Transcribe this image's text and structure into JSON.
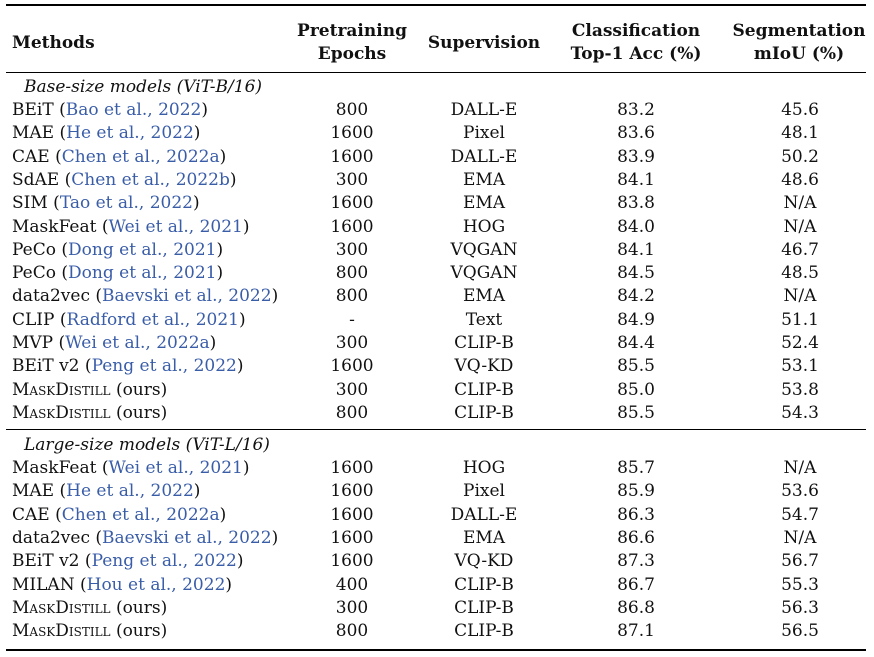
{
  "header": {
    "methods": "Methods",
    "epochs_line1": "Pretraining",
    "epochs_line2": "Epochs",
    "supervision": "Supervision",
    "acc_line1": "Classification",
    "acc_line2": "Top-1 Acc (%)",
    "miou_line1": "Segmentation",
    "miou_line2": "mIoU (%)"
  },
  "sections": [
    {
      "title": "Base-size models (ViT-B/16)",
      "rows": [
        {
          "method": "BEiT",
          "cite": "Bao et al., 2022",
          "epochs": "800",
          "sup": "DALL-E",
          "acc": "83.2",
          "miou": "45.6"
        },
        {
          "method": "MAE",
          "cite": "He et al., 2022",
          "epochs": "1600",
          "sup": "Pixel",
          "acc": "83.6",
          "miou": "48.1"
        },
        {
          "method": "CAE",
          "cite": "Chen et al., 2022a",
          "epochs": "1600",
          "sup": "DALL-E",
          "acc": "83.9",
          "miou": "50.2"
        },
        {
          "method": "SdAE",
          "cite": "Chen et al., 2022b",
          "epochs": "300",
          "sup": "EMA",
          "acc": "84.1",
          "miou": "48.6"
        },
        {
          "method": "SIM",
          "cite": "Tao et al., 2022",
          "epochs": "1600",
          "sup": "EMA",
          "acc": "83.8",
          "miou": "N/A"
        },
        {
          "method": "MaskFeat",
          "cite": "Wei et al., 2021",
          "epochs": "1600",
          "sup": "HOG",
          "acc": "84.0",
          "miou": "N/A"
        },
        {
          "method": "PeCo",
          "cite": "Dong et al., 2021",
          "epochs": "300",
          "sup": "VQGAN",
          "acc": "84.1",
          "miou": "46.7"
        },
        {
          "method": "PeCo",
          "cite": "Dong et al., 2021",
          "epochs": "800",
          "sup": "VQGAN",
          "acc": "84.5",
          "miou": "48.5"
        },
        {
          "method": "data2vec",
          "cite": "Baevski et al., 2022",
          "epochs": "800",
          "sup": "EMA",
          "acc": "84.2",
          "miou": "N/A"
        },
        {
          "method": "CLIP",
          "cite": "Radford et al., 2021",
          "epochs": "-",
          "sup": "Text",
          "acc": "84.9",
          "miou": "51.1"
        },
        {
          "method": "MVP",
          "cite": "Wei et al., 2022a",
          "epochs": "300",
          "sup": "CLIP-B",
          "acc": "84.4",
          "miou": "52.4"
        },
        {
          "method": "BEiT v2",
          "cite": "Peng et al., 2022",
          "epochs": "1600",
          "sup": "VQ-KD",
          "acc": "85.5",
          "miou": "53.1"
        },
        {
          "method": "MaskDistill",
          "cite": "",
          "suffix": "(ours)",
          "epochs": "300",
          "sup": "CLIP-B",
          "acc": "85.0",
          "miou": "53.8",
          "sc": true
        },
        {
          "method": "MaskDistill",
          "cite": "",
          "suffix": "(ours)",
          "epochs": "800",
          "sup": "CLIP-B",
          "acc": "85.5",
          "miou": "54.3",
          "sc": true
        }
      ]
    },
    {
      "title": "Large-size models (ViT-L/16)",
      "rows": [
        {
          "method": "MaskFeat",
          "cite": "Wei et al., 2021",
          "epochs": "1600",
          "sup": "HOG",
          "acc": "85.7",
          "miou": "N/A"
        },
        {
          "method": "MAE",
          "cite": "He et al., 2022",
          "epochs": "1600",
          "sup": "Pixel",
          "acc": "85.9",
          "miou": "53.6"
        },
        {
          "method": "CAE",
          "cite": "Chen et al., 2022a",
          "epochs": "1600",
          "sup": "DALL-E",
          "acc": "86.3",
          "miou": "54.7"
        },
        {
          "method": "data2vec",
          "cite": "Baevski et al., 2022",
          "epochs": "1600",
          "sup": "EMA",
          "acc": "86.6",
          "miou": "N/A"
        },
        {
          "method": "BEiT v2",
          "cite": "Peng et al., 2022",
          "epochs": "1600",
          "sup": "VQ-KD",
          "acc": "87.3",
          "miou": "56.7"
        },
        {
          "method": "MILAN",
          "cite": "Hou et al., 2022",
          "epochs": "400",
          "sup": "CLIP-B",
          "acc": "86.7",
          "miou": "55.3"
        },
        {
          "method": "MaskDistill",
          "cite": "",
          "suffix": "(ours)",
          "epochs": "300",
          "sup": "CLIP-B",
          "acc": "86.8",
          "miou": "56.3",
          "sc": true
        },
        {
          "method": "MaskDistill",
          "cite": "",
          "suffix": "(ours)",
          "epochs": "800",
          "sup": "CLIP-B",
          "acc": "87.1",
          "miou": "56.5",
          "sc": true
        }
      ]
    }
  ]
}
